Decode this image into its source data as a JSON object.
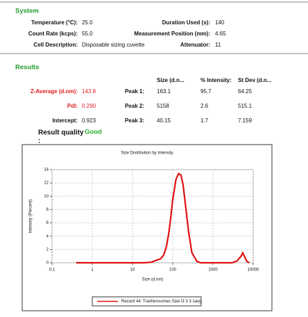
{
  "system": {
    "title": "System",
    "rows": [
      [
        {
          "label": "Temperature (°C):",
          "value": "25.0"
        },
        {
          "label": "Duration Used (s):",
          "value": "140"
        }
      ],
      [
        {
          "label": "Count Rate (kcps):",
          "value": "55.0"
        },
        {
          "label": "Measurement Position (mm):",
          "value": "4.65"
        }
      ],
      [
        {
          "label": "Cell Description:",
          "value": "Disposable sizing cuvette"
        },
        {
          "label": "Attenuator:",
          "value": "11"
        }
      ]
    ]
  },
  "results": {
    "title": "Results",
    "headers": [
      "Size (d.n...",
      "% Intensity:",
      "St Dev (d.n..."
    ],
    "summary": [
      {
        "label": "Z-Average (d.nm):",
        "value": "143.8"
      },
      {
        "label": "PdI:",
        "value": "0.290"
      },
      {
        "label": "Intercept:",
        "value": "0.923"
      }
    ],
    "peaks": [
      {
        "label": "Peak 1:",
        "size": "163.1",
        "intensity": "95.7",
        "st_dev": "64.25"
      },
      {
        "label": "Peak 2:",
        "size": "5158",
        "intensity": "2.6",
        "st_dev": "515.1"
      },
      {
        "label": "Peak 3:",
        "size": "40.15",
        "intensity": "1.7",
        "st_dev": "7.159"
      }
    ],
    "quality_label": "Result quality",
    "quality_colon": ":",
    "quality": "Good"
  },
  "chart_data": {
    "type": "line",
    "title": "Size Distribution by Intensity",
    "xlabel": "Size (d.nm)",
    "ylabel": "Intensity (Percent)",
    "x": [
      0.4,
      1,
      10,
      20,
      30,
      40,
      50,
      60,
      70,
      80,
      90,
      100,
      120,
      140,
      160,
      180,
      200,
      250,
      300,
      400,
      500,
      1000,
      3000,
      4000,
      5000,
      5500,
      6000,
      7000,
      8000
    ],
    "series": [
      {
        "name": "Record 44: Tranferosomes Size l3 3 3 1avg",
        "color": "#e01010",
        "values": [
          0,
          0,
          0,
          0,
          0.1,
          0.4,
          0.6,
          1.2,
          2.5,
          4.5,
          7,
          9.5,
          12.5,
          13.4,
          13.2,
          11.8,
          9.5,
          4.5,
          1.5,
          0.2,
          0,
          0,
          0,
          0.3,
          1.0,
          1.5,
          1.0,
          0.2,
          0
        ]
      }
    ],
    "xlim": [
      0.1,
      10000
    ],
    "ylim": [
      0,
      14
    ],
    "xticks": [
      0.1,
      1,
      10,
      100,
      1000,
      10000
    ],
    "yticks": [
      0,
      2,
      4,
      6,
      8,
      10,
      12,
      14
    ],
    "xscale": "log",
    "grid": true
  }
}
